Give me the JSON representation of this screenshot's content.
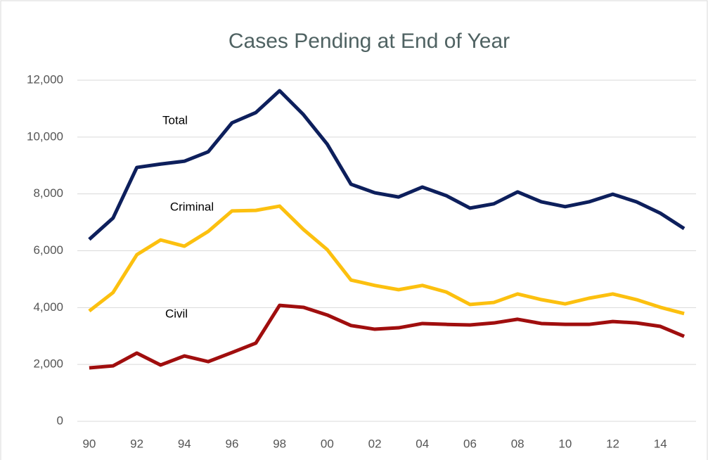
{
  "chart_data": {
    "type": "line",
    "title": "Cases Pending at End of Year",
    "categories": [
      "90",
      null,
      "92",
      null,
      "94",
      null,
      "96",
      null,
      "98",
      null,
      "00",
      null,
      "02",
      null,
      "04",
      null,
      "06",
      null,
      "08",
      null,
      "10",
      null,
      "12",
      null,
      "14",
      null
    ],
    "series": [
      {
        "name": "Total",
        "color": "#0d1f5c",
        "values": [
          6400,
          7150,
          8930,
          9050,
          9150,
          9480,
          10500,
          10860,
          11630,
          10790,
          9750,
          8340,
          8040,
          7890,
          8240,
          7940,
          7500,
          7650,
          8070,
          7720,
          7550,
          7720,
          7990,
          7720,
          7320,
          6780
        ]
      },
      {
        "name": "Criminal",
        "color": "#fcc00f",
        "values": [
          3880,
          4530,
          5860,
          6380,
          6160,
          6680,
          7400,
          7420,
          7570,
          6750,
          6040,
          4970,
          4780,
          4630,
          4780,
          4550,
          4110,
          4180,
          4480,
          4280,
          4130,
          4330,
          4480,
          4280,
          4010,
          3790
        ]
      },
      {
        "name": "Civil",
        "color": "#a00e0e",
        "values": [
          1880,
          1950,
          2400,
          1980,
          2300,
          2100,
          2420,
          2750,
          4080,
          4010,
          3740,
          3370,
          3240,
          3290,
          3440,
          3410,
          3390,
          3460,
          3590,
          3440,
          3410,
          3410,
          3510,
          3460,
          3340,
          2990
        ]
      }
    ],
    "ylim": [
      0,
      12000
    ],
    "yticks": [
      0,
      {
        "value": 2000,
        "label": "2,000"
      },
      {
        "value": 4000,
        "label": "4,000"
      },
      {
        "value": 6000,
        "label": "6,000"
      },
      {
        "value": 8000,
        "label": "8,000"
      },
      {
        "value": 10000,
        "label": "10,000"
      },
      {
        "value": 12000,
        "label": "12,000"
      }
    ],
    "grid": true
  }
}
